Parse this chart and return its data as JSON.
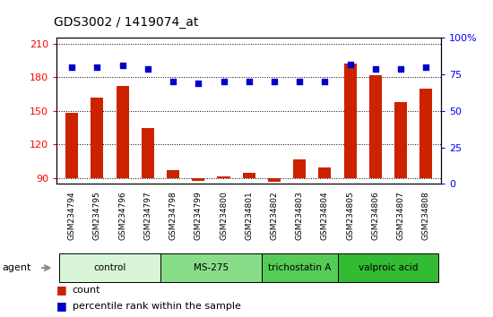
{
  "title": "GDS3002 / 1419074_at",
  "samples": [
    "GSM234794",
    "GSM234795",
    "GSM234796",
    "GSM234797",
    "GSM234798",
    "GSM234799",
    "GSM234800",
    "GSM234801",
    "GSM234802",
    "GSM234803",
    "GSM234804",
    "GSM234805",
    "GSM234806",
    "GSM234807",
    "GSM234808"
  ],
  "counts": [
    148,
    162,
    172,
    135,
    97,
    88,
    92,
    95,
    87,
    107,
    100,
    192,
    182,
    158,
    170
  ],
  "percentiles": [
    80,
    80,
    81,
    79,
    70,
    69,
    70,
    70,
    70,
    70,
    70,
    82,
    79,
    79,
    80
  ],
  "groups": [
    {
      "label": "control",
      "start": 0,
      "end": 3,
      "color": "#d8f5d8"
    },
    {
      "label": "MS-275",
      "start": 4,
      "end": 7,
      "color": "#88dd88"
    },
    {
      "label": "trichostatin A",
      "start": 8,
      "end": 10,
      "color": "#55cc55"
    },
    {
      "label": "valproic acid",
      "start": 11,
      "end": 14,
      "color": "#33bb33"
    }
  ],
  "ylim_left": [
    85,
    215
  ],
  "yticks_left": [
    90,
    120,
    150,
    180,
    210
  ],
  "ylim_right": [
    0,
    100
  ],
  "yticks_right": [
    0,
    25,
    50,
    75,
    100
  ],
  "ytick_right_labels": [
    "0",
    "25",
    "50",
    "75",
    "100%"
  ],
  "bar_color": "#cc2200",
  "dot_color": "#0000cc",
  "xticklabel_bg": "#cccccc",
  "bar_bottom": 90
}
